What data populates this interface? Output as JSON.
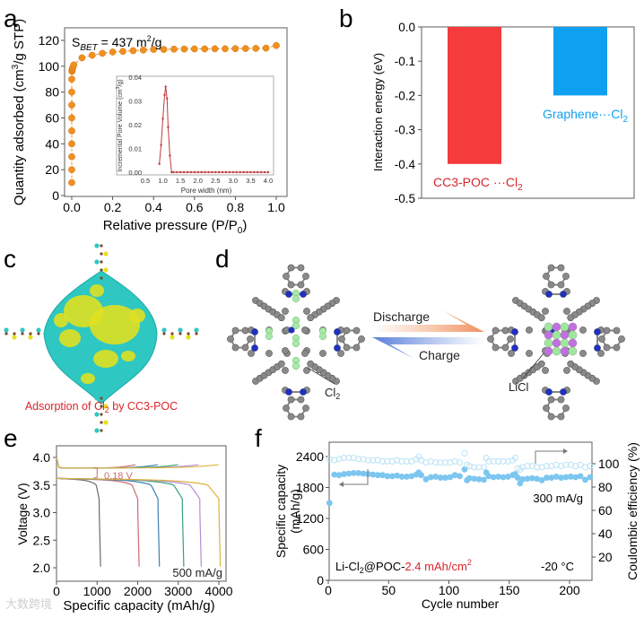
{
  "panel_labels": {
    "a": "a",
    "b": "b",
    "c": "c",
    "d": "d",
    "e": "e",
    "f": "f"
  },
  "colors": {
    "orange": "#f0901e",
    "red": "#f53b3b",
    "blue": "#10a0f0",
    "dark_red": "#d9262b",
    "inset": "#c0393b",
    "f_capacity": "#7cc6ef",
    "f_ce": "#b8e2f5"
  },
  "chart_data": [
    {
      "id": "a",
      "type": "scatter",
      "title": "",
      "xlabel": "Relative pressure (P/P0)",
      "xlabel_parts": {
        "main": "Relative pressure (P/P",
        "sub": "0",
        "end": ")"
      },
      "ylabel": "Quantity adsorbed (cm3/g STP)",
      "ylabel_parts": {
        "main": "Quantity adsorbed (cm",
        "sup": "3",
        "end": "/g STP)"
      },
      "annotation_parts": {
        "s": "S",
        "sub": "BET",
        "mid": " = 437 m",
        "sup": "2",
        "end": "/g"
      },
      "xlim": [
        -0.1,
        1.05
      ],
      "ylim": [
        0,
        130
      ],
      "xticks": [
        "0.0",
        "0.2",
        "0.4",
        "0.6",
        "0.8",
        "1.0"
      ],
      "yticks": [
        "0",
        "20",
        "40",
        "60",
        "80",
        "100",
        "120"
      ],
      "x": [
        0,
        0,
        0,
        0,
        0,
        0,
        0,
        0,
        0,
        0.001,
        0.002,
        0.003,
        0.005,
        0.01,
        0.05,
        0.1,
        0.15,
        0.2,
        0.25,
        0.3,
        0.35,
        0.4,
        0.45,
        0.5,
        0.55,
        0.6,
        0.65,
        0.7,
        0.75,
        0.8,
        0.85,
        0.9,
        0.95,
        1.0
      ],
      "y": [
        10,
        20,
        30,
        40,
        50,
        60,
        70,
        80,
        90,
        96,
        97,
        98,
        99,
        101,
        106.5,
        108.5,
        110,
        111,
        111.5,
        112,
        112.5,
        113,
        113,
        113.2,
        113.3,
        113.4,
        113.4,
        113.5,
        113.5,
        113.6,
        113.7,
        113.8,
        114,
        116
      ],
      "inset": {
        "type": "line",
        "xlabel": "Pore width (nm)",
        "ylabel": "Incremental Pore Volume (cm3/g)",
        "ylabel_parts": {
          "main": "Incremental Pore Volume (cm",
          "sup": "3",
          "end": "/g)"
        },
        "xlim": [
          0.5,
          4.0
        ],
        "ylim": [
          0,
          0.04
        ],
        "xticks": [
          "0.5",
          "1.0",
          "1.5",
          "2.0",
          "2.5",
          "3.0",
          "3.5",
          "4.0"
        ],
        "yticks": [
          "0.00",
          "0.01",
          "0.02",
          "0.03",
          "0.04"
        ],
        "x": [
          0.9,
          0.95,
          1.0,
          1.05,
          1.08,
          1.12,
          1.15,
          1.2,
          1.25,
          1.3,
          1.4,
          1.5,
          1.6,
          1.7,
          1.8,
          1.9,
          2.0,
          2.1,
          2.2,
          2.3,
          2.4,
          2.5,
          2.6,
          2.7,
          2.8,
          2.9,
          3.0,
          3.1,
          3.2,
          3.3,
          3.4,
          3.5,
          3.6,
          3.7,
          3.8,
          3.9,
          4.0
        ],
        "y": [
          0.0035,
          0.0115,
          0.0225,
          0.0325,
          0.036,
          0.031,
          0.019,
          0.007,
          0,
          0,
          0,
          0,
          0,
          0,
          0,
          0,
          0,
          0,
          0,
          0,
          0,
          0,
          0,
          0,
          0,
          0,
          0,
          0,
          0,
          0,
          0,
          0,
          0,
          0,
          0,
          0,
          0
        ]
      }
    },
    {
      "id": "b",
      "type": "bar",
      "ylabel": "Interaction energy (eV)",
      "ylim": [
        -0.5,
        0.0
      ],
      "yticks": [
        "0.0",
        "-0.1",
        "-0.2",
        "-0.3",
        "-0.4",
        "-0.5"
      ],
      "categories": [
        "CC3-POC ···Cl2",
        "Graphene···Cl2"
      ],
      "category_parts": [
        {
          "main": "CC3-POC ···Cl",
          "sub": "2"
        },
        {
          "main": "Graphene···Cl",
          "sub": "2"
        }
      ],
      "values": [
        -0.4,
        -0.2
      ]
    },
    {
      "id": "e",
      "type": "line",
      "xlabel": "Specific capacity (mAh/g)",
      "ylabel": "Voltage (V)",
      "xlim": [
        0,
        4200
      ],
      "ylim": [
        1.8,
        4.2
      ],
      "xticks": [
        "0",
        "1000",
        "2000",
        "3000",
        "4000"
      ],
      "yticks": [
        "2.0",
        "2.5",
        "3.0",
        "3.5",
        "4.0"
      ],
      "annotation": "0.18 V",
      "rate_label": "500 mA/g",
      "series": [
        {
          "name": "1000",
          "color": "#6b6b6b",
          "discharge_capacity": 1050,
          "charge_capacity": 0
        },
        {
          "name": "2000",
          "color": "#d06a72",
          "discharge_capacity": 2000,
          "charge_capacity": 1950
        },
        {
          "name": "2500",
          "color": "#3b7fb0",
          "discharge_capacity": 2500,
          "charge_capacity": 2500
        },
        {
          "name": "3000",
          "color": "#3a9f76",
          "discharge_capacity": 3100,
          "charge_capacity": 3000
        },
        {
          "name": "3500",
          "color": "#b88ad8",
          "discharge_capacity": 3530,
          "charge_capacity": 3500
        },
        {
          "name": "4000",
          "color": "#d8b43a",
          "discharge_capacity": 4000,
          "charge_capacity": 4000
        }
      ]
    },
    {
      "id": "f",
      "type": "scatter",
      "xlabel": "Cycle number",
      "ylabel_left": "Specific capacity (mAh/g)",
      "ylabel_left_lines": [
        "Specific capacity",
        "(mAh/g)"
      ],
      "ylabel_right": "Coulombic efficiency (%)",
      "xlim": [
        0,
        220
      ],
      "ylim_left": [
        0,
        2700
      ],
      "ylim_right": [
        0,
        115
      ],
      "xticks": [
        "0",
        "50",
        "100",
        "150",
        "200"
      ],
      "yticks_left": [
        "0",
        "600",
        "1200",
        "1800",
        "2400"
      ],
      "yticks_right": [
        "20",
        "40",
        "60",
        "80",
        "100"
      ],
      "rate_label": "300 mA/g",
      "temperature_label": "-20 °C",
      "sample_label_parts": {
        "a": "Li-Cl",
        "sub": "2",
        "b": "@POC-",
        "c": "2.4 mAh/cm",
        "sup": "2"
      },
      "cycles": [
        1,
        5,
        9,
        13,
        17,
        21,
        25,
        29,
        33,
        37,
        41,
        45,
        49,
        53,
        57,
        61,
        65,
        69,
        73,
        75,
        77,
        81,
        85,
        89,
        93,
        97,
        101,
        105,
        109,
        113,
        115,
        117,
        121,
        125,
        129,
        131,
        133,
        137,
        141,
        145,
        149,
        153,
        155,
        157,
        159,
        161,
        165,
        169,
        173,
        177,
        181,
        185,
        189,
        193,
        197,
        201,
        205,
        209,
        213,
        217
      ],
      "capacity": [
        1500,
        2050,
        2040,
        2060,
        2070,
        2080,
        2080,
        2070,
        2060,
        2050,
        2040,
        2040,
        2020,
        2020,
        2030,
        2010,
        2010,
        2020,
        2050,
        2090,
        2040,
        1960,
        2000,
        2010,
        1990,
        1990,
        2000,
        2040,
        2020,
        2150,
        1940,
        1980,
        1970,
        1960,
        1950,
        2090,
        2020,
        2000,
        2010,
        2000,
        2010,
        2040,
        2060,
        1990,
        1880,
        1960,
        1970,
        1980,
        1970,
        1940,
        1990,
        1990,
        2010,
        1990,
        2000,
        2010,
        2000,
        2020,
        1950,
        2000
      ],
      "coulombic_efficiency": [
        104,
        103,
        104,
        105,
        105,
        105,
        104,
        104,
        103,
        103,
        103,
        102,
        102,
        102,
        103,
        102,
        102,
        102,
        104,
        106,
        103,
        101,
        102,
        101,
        101,
        101,
        101,
        102,
        101,
        109,
        99,
        98,
        97,
        97,
        97,
        105,
        102,
        102,
        102,
        102,
        102,
        103,
        105,
        96,
        95,
        97,
        98,
        98,
        97,
        97,
        98,
        98,
        99,
        98,
        99,
        99,
        98,
        99,
        97,
        98
      ]
    }
  ],
  "panel_c": {
    "caption_parts": {
      "a": "Adsorption of Cl",
      "sub": "2",
      "b": " by CC3-POC"
    }
  },
  "panel_d": {
    "discharge_label": "Discharge",
    "charge_label": "Charge",
    "cl2_label_parts": {
      "main": "Cl",
      "sub": "2"
    },
    "licl_label": "LiCl"
  },
  "watermark": "大数跨境"
}
